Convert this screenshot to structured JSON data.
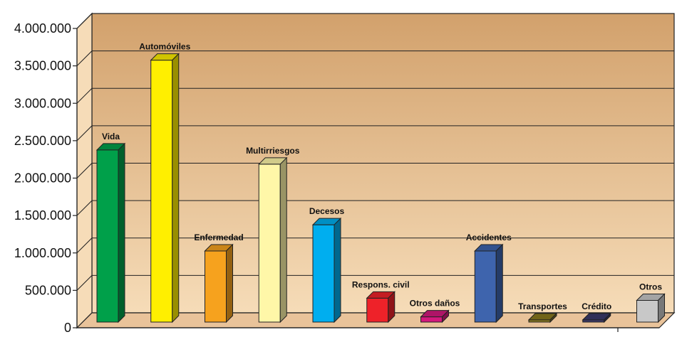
{
  "chart_data": {
    "type": "bar",
    "title": "",
    "xlabel": "",
    "ylabel": "",
    "ylim": [
      0,
      4000000
    ],
    "grid": true,
    "legend": "none",
    "categories": [
      "Vida",
      "Automóviles",
      "Enfermedad",
      "Multirriesgos",
      "Decesos",
      "Respons. civil",
      "Otros daños",
      "Accidentes",
      "Transportes",
      "Crédito",
      "Otros"
    ],
    "values": [
      2300000,
      3500000,
      950000,
      2110000,
      1300000,
      320000,
      70000,
      950000,
      30000,
      30000,
      290000
    ],
    "y_ticks": [
      0,
      500000,
      1000000,
      1500000,
      2000000,
      2500000,
      3000000,
      3500000,
      4000000
    ],
    "y_tick_labels": [
      "0",
      "500.000",
      "1.000.000",
      "1.500.000",
      "2.000.000",
      "2.500.000",
      "3.000.000",
      "3.500.000",
      "4.000.000"
    ],
    "bar_colors": [
      "#00a04a",
      "#ffef00",
      "#f6a21e",
      "#fff7a8",
      "#00aeef",
      "#ee2229",
      "#d4187d",
      "#3e64ad",
      "#8a7a1e",
      "#3c3a6b",
      "#c8c8c8"
    ],
    "background": {
      "wall_top": "#d2a16c",
      "wall_bottom": "#f6dcb8",
      "floor": "#e9c39a"
    }
  }
}
